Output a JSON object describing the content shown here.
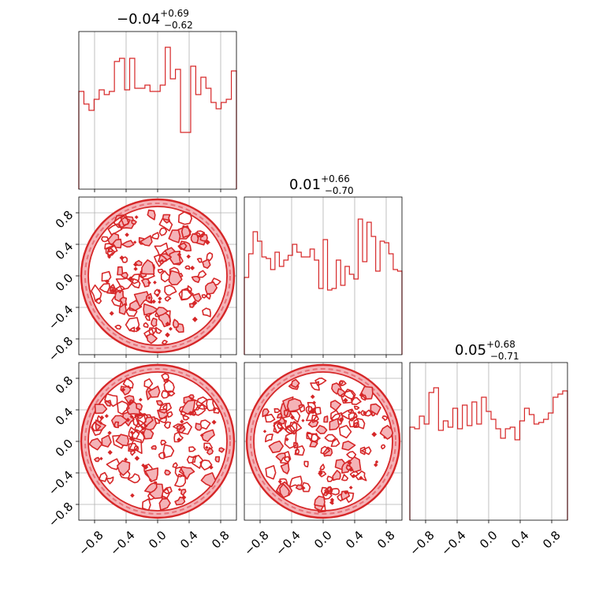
{
  "figure": {
    "type": "corner_plot",
    "colors": {
      "primary": "#d62728",
      "fill_light": "#f4b3b7",
      "fill_mid": "#e8737a",
      "grid": "#b0b0b0",
      "axis": "#000000"
    }
  },
  "chart_data": [
    {
      "type": "bar",
      "subtype": "step_histogram",
      "panel": "diag-0",
      "title": {
        "value": "−0.04",
        "sup": "+0.69",
        "sub": "−0.62"
      },
      "xlim": [
        -1.0,
        1.0
      ],
      "bin_edges_start": -1.0,
      "bin_width": 0.0667,
      "values": [
        0.62,
        0.54,
        0.5,
        0.57,
        0.63,
        0.6,
        0.62,
        0.81,
        0.83,
        0.63,
        0.83,
        0.64,
        0.64,
        0.66,
        0.62,
        0.62,
        0.66,
        0.9,
        0.7,
        0.76,
        0.36,
        0.36,
        0.78,
        0.6,
        0.71,
        0.64,
        0.55,
        0.51,
        0.55,
        0.57,
        0.75
      ],
      "xticks": [
        "−0.8",
        "−0.4",
        "0.0",
        "0.4",
        "0.8"
      ],
      "grid": true
    },
    {
      "type": "bar",
      "subtype": "step_histogram",
      "panel": "diag-1",
      "title": {
        "value": "0.01",
        "sup": "+0.66",
        "sub": "−0.70"
      },
      "xlim": [
        -1.0,
        1.0
      ],
      "bin_edges_start": -1.0,
      "bin_width": 0.0667,
      "values": [
        0.49,
        0.64,
        0.78,
        0.72,
        0.62,
        0.61,
        0.54,
        0.65,
        0.56,
        0.6,
        0.63,
        0.7,
        0.65,
        0.62,
        0.62,
        0.67,
        0.6,
        0.42,
        0.73,
        0.41,
        0.42,
        0.6,
        0.44,
        0.56,
        0.51,
        0.48,
        0.86,
        0.59,
        0.84,
        0.75,
        0.53,
        0.72,
        0.71,
        0.64,
        0.54,
        0.53
      ],
      "xticks": [
        "−0.8",
        "−0.4",
        "0.0",
        "0.4",
        "0.8"
      ],
      "grid": true
    },
    {
      "type": "bar",
      "subtype": "step_histogram",
      "panel": "diag-2",
      "title": {
        "value": "0.05",
        "sup": "+0.68",
        "sub": "−0.71"
      },
      "xlim": [
        -1.0,
        1.0
      ],
      "bin_edges_start": -1.0,
      "bin_width": 0.0667,
      "values": [
        0.59,
        0.58,
        0.66,
        0.61,
        0.81,
        0.84,
        0.57,
        0.63,
        0.59,
        0.71,
        0.58,
        0.73,
        0.6,
        0.75,
        0.61,
        0.78,
        0.69,
        0.64,
        0.58,
        0.52,
        0.58,
        0.59,
        0.51,
        0.63,
        0.71,
        0.67,
        0.61,
        0.62,
        0.64,
        0.68,
        0.78,
        0.8,
        0.82
      ],
      "xticks": [
        "−0.8",
        "−0.4",
        "0.0",
        "0.4",
        "0.8"
      ],
      "grid": true
    },
    {
      "type": "scatter",
      "subtype": "2d_density_contour",
      "panel": "lower-1-0",
      "region": "unit_disk",
      "xlim": [
        -1.0,
        1.0
      ],
      "ylim": [
        -1.0,
        1.0
      ],
      "yticks": [
        "0.8",
        "0.4",
        "0.0",
        "−0.4",
        "−0.8"
      ],
      "grid": true
    },
    {
      "type": "scatter",
      "subtype": "2d_density_contour",
      "panel": "lower-2-0",
      "region": "unit_disk",
      "xlim": [
        -1.0,
        1.0
      ],
      "ylim": [
        -1.0,
        1.0
      ],
      "xticks": [
        "−0.8",
        "−0.4",
        "0.0",
        "0.4",
        "0.8"
      ],
      "yticks": [
        "0.8",
        "0.4",
        "0.0",
        "−0.4",
        "−0.8"
      ],
      "grid": true
    },
    {
      "type": "scatter",
      "subtype": "2d_density_contour",
      "panel": "lower-2-1",
      "region": "unit_disk",
      "xlim": [
        -1.0,
        1.0
      ],
      "ylim": [
        -1.0,
        1.0
      ],
      "xticks": [
        "−0.8",
        "−0.4",
        "0.0",
        "0.4",
        "0.8"
      ],
      "grid": true
    }
  ]
}
